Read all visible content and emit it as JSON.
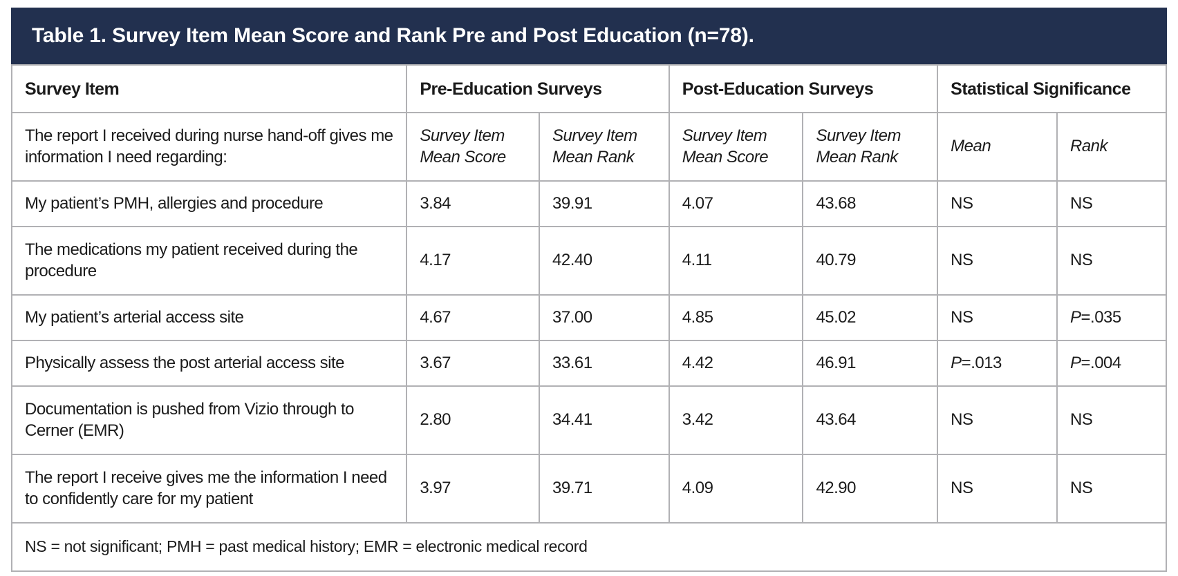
{
  "table": {
    "title": "Table 1. Survey Item Mean Score and Rank Pre and Post Education (n=78).",
    "column_groups": [
      "Survey Item",
      "Pre-Education Surveys",
      "Post-Education Surveys",
      "Statistical Significance"
    ],
    "subheader": {
      "item_label": "The report I received during nurse hand-off gives me information I need regarding:",
      "columns": [
        "Survey Item Mean Score",
        "Survey Item Mean Rank",
        "Survey Item Mean Score",
        "Survey Item Mean Rank",
        "Mean",
        "Rank"
      ]
    },
    "rows": [
      {
        "item": "My patient’s PMH, allergies and procedure",
        "pre_score": "3.84",
        "pre_rank": "39.91",
        "post_score": "4.07",
        "post_rank": "43.68",
        "sig_mean": "NS",
        "sig_rank": "NS"
      },
      {
        "item": "The medications my patient received during the procedure",
        "pre_score": "4.17",
        "pre_rank": "42.40",
        "post_score": "4.11",
        "post_rank": "40.79",
        "sig_mean": "NS",
        "sig_rank": "NS"
      },
      {
        "item": "My patient’s arterial access site",
        "pre_score": "4.67",
        "pre_rank": "37.00",
        "post_score": "4.85",
        "post_rank": "45.02",
        "sig_mean": "NS",
        "sig_rank": "P=.035"
      },
      {
        "item": "Physically assess the post arterial access site",
        "pre_score": "3.67",
        "pre_rank": "33.61",
        "post_score": "4.42",
        "post_rank": "46.91",
        "sig_mean": "P=.013",
        "sig_rank": "P=.004"
      },
      {
        "item": "Documentation is pushed from Vizio through to Cerner (EMR)",
        "pre_score": "2.80",
        "pre_rank": "34.41",
        "post_score": "3.42",
        "post_rank": "43.64",
        "sig_mean": "NS",
        "sig_rank": "NS"
      },
      {
        "item": "The report I receive gives me the information I need to confidently care for my patient",
        "pre_score": "3.97",
        "pre_rank": "39.71",
        "post_score": "4.09",
        "post_rank": "42.90",
        "sig_mean": "NS",
        "sig_rank": "NS"
      }
    ],
    "footnote": "NS = not significant; PMH = past medical history; EMR = electronic medical record",
    "sample_size": "n=78"
  },
  "colors": {
    "header_bg": "#22304f",
    "header_text": "#ffffff",
    "border": "#b1b1b4",
    "body_text": "#1b1b1b"
  }
}
